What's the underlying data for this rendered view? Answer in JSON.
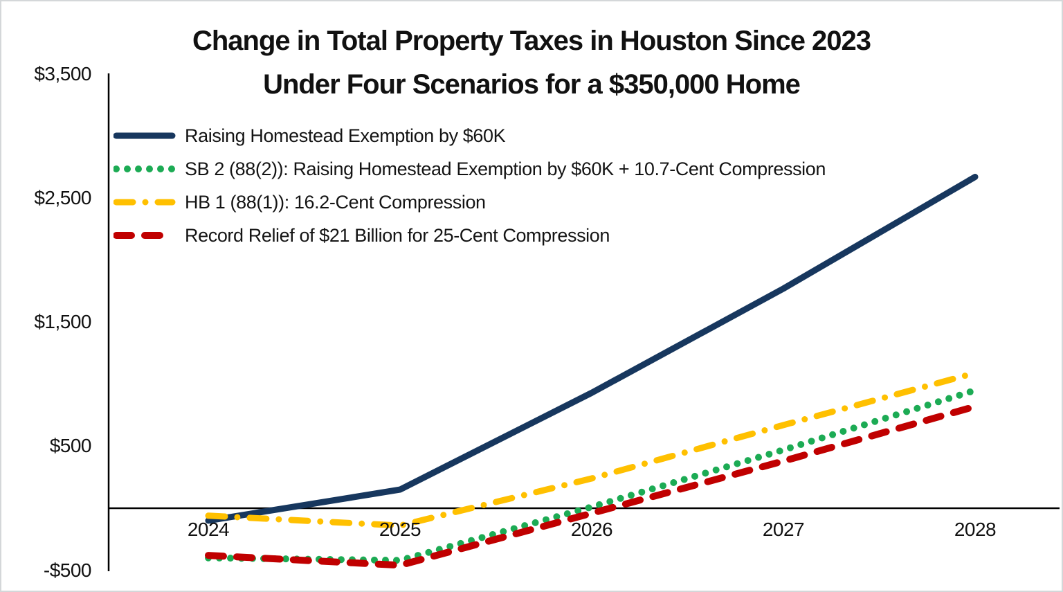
{
  "title": {
    "line1": "Change in Total Property Taxes in Houston Since 2023",
    "line2": "Under Four Scenarios for a $350,000 Home"
  },
  "chart_data": {
    "type": "line",
    "x": [
      2024,
      2025,
      2026,
      2027,
      2028
    ],
    "x_tick_labels": [
      "2024",
      "2025",
      "2026",
      "2027",
      "2028"
    ],
    "y_tick_labels": [
      "$3,500",
      "$2,500",
      "$1,500",
      "$500",
      "-$500"
    ],
    "y_tick_values": [
      3500,
      2500,
      1500,
      500,
      -500
    ],
    "ylim": [
      -500,
      3500
    ],
    "xlabel": "",
    "ylabel": "",
    "grid": false,
    "legend_position": "top-left-inside",
    "axis_color": "#000000",
    "series": [
      {
        "name": "Raising Homestead Exemption by $60K",
        "color": "#17375E",
        "style": "solid",
        "values": [
          -100,
          150,
          930,
          1770,
          2670
        ]
      },
      {
        "name": "SB 2 (88(2)): Raising Homestead Exemption by $60K + 10.7-Cent Compression",
        "color": "#1CAB54",
        "style": "dotted",
        "values": [
          -400,
          -420,
          10,
          470,
          950
        ]
      },
      {
        "name": "HB 1 (88(1)): 16.2-Cent Compression",
        "color": "#FFC000",
        "style": "dash-dot",
        "values": [
          -60,
          -140,
          240,
          670,
          1090
        ]
      },
      {
        "name": "Record Relief of $21 Billion for 25-Cent Compression",
        "color": "#C00000",
        "style": "dashed",
        "values": [
          -380,
          -460,
          -40,
          380,
          820
        ]
      }
    ]
  }
}
